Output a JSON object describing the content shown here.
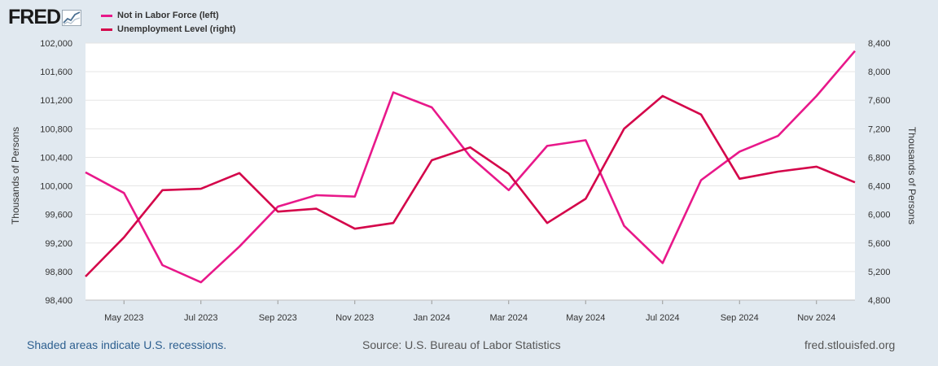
{
  "logo": {
    "text": "FRED",
    "icon": "chart-line-icon"
  },
  "footer": {
    "recessions": "Shaded areas indicate U.S. recessions.",
    "source": "Source: U.S. Bureau of Labor Statistics",
    "site": "fred.stlouisfed.org"
  },
  "colors": {
    "background": "#e1e9f0",
    "plot": "#ffffff",
    "grid": "#e5e5e5",
    "series_left": "#e8188a",
    "series_right": "#d4054a"
  },
  "chart_data": {
    "type": "line",
    "title": "",
    "x": [
      "2023-04",
      "2023-05",
      "2023-06",
      "2023-07",
      "2023-08",
      "2023-09",
      "2023-10",
      "2023-11",
      "2023-12",
      "2024-01",
      "2024-02",
      "2024-03",
      "2024-04",
      "2024-05",
      "2024-06",
      "2024-07",
      "2024-08",
      "2024-09",
      "2024-10",
      "2024-11",
      "2024-12"
    ],
    "x_tick_labels": [
      {
        "at": "2023-05",
        "label": "May 2023"
      },
      {
        "at": "2023-07",
        "label": "Jul 2023"
      },
      {
        "at": "2023-09",
        "label": "Sep 2023"
      },
      {
        "at": "2023-11",
        "label": "Nov 2023"
      },
      {
        "at": "2024-01",
        "label": "Jan 2024"
      },
      {
        "at": "2024-03",
        "label": "Mar 2024"
      },
      {
        "at": "2024-05",
        "label": "May 2024"
      },
      {
        "at": "2024-07",
        "label": "Jul 2024"
      },
      {
        "at": "2024-09",
        "label": "Sep 2024"
      },
      {
        "at": "2024-11",
        "label": "Nov 2024"
      }
    ],
    "y_left": {
      "label": "Thousands of Persons",
      "range": [
        98400,
        102000
      ],
      "ticks": [
        98400,
        98800,
        99200,
        99600,
        100000,
        100400,
        100800,
        101200,
        101600,
        102000
      ],
      "tick_labels": [
        "98,400",
        "98,800",
        "99,200",
        "99,600",
        "100,000",
        "100,400",
        "100,800",
        "101,200",
        "101,600",
        "102,000"
      ]
    },
    "y_right": {
      "label": "Thousands of Persons",
      "range": [
        4800,
        8400
      ],
      "ticks": [
        4800,
        5200,
        5600,
        6000,
        6400,
        6800,
        7200,
        7600,
        8000,
        8400
      ],
      "tick_labels": [
        "4,800",
        "5,200",
        "5,600",
        "6,000",
        "6,400",
        "6,800",
        "7,200",
        "7,600",
        "8,000",
        "8,400"
      ]
    },
    "series": [
      {
        "name": "Not in Labor Force (left)",
        "axis": "left",
        "color": "#e8188a",
        "values": [
          100190,
          99900,
          98890,
          98650,
          99150,
          99710,
          99870,
          99850,
          101310,
          101100,
          100410,
          99940,
          100560,
          100640,
          99440,
          98920,
          100080,
          100480,
          100700,
          101260,
          101890
        ]
      },
      {
        "name": "Unemployment Level (right)",
        "axis": "right",
        "color": "#d4054a",
        "values": [
          5130,
          5680,
          6340,
          6360,
          6580,
          6040,
          6080,
          5800,
          5880,
          6760,
          6940,
          6570,
          5880,
          6220,
          7200,
          7660,
          7400,
          6500,
          6600,
          6670,
          6450
        ]
      }
    ]
  }
}
